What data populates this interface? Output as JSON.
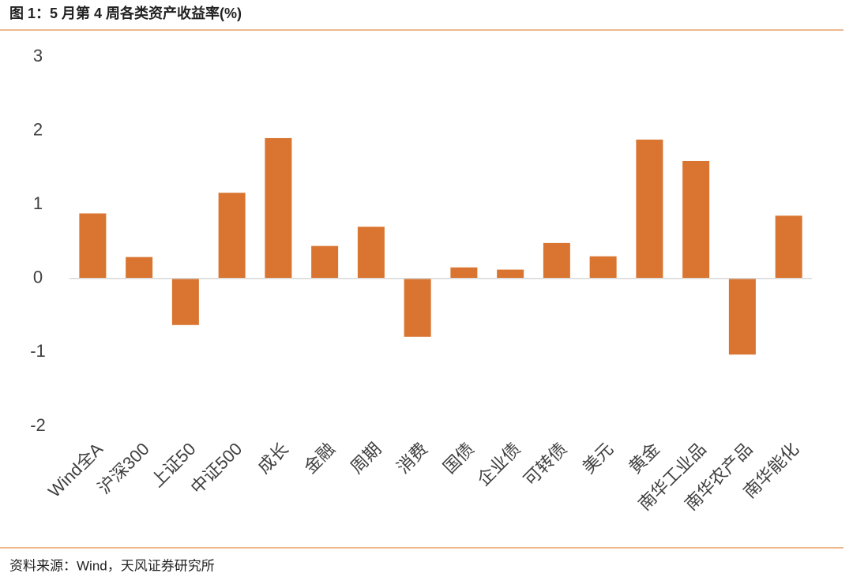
{
  "chart_data": {
    "type": "bar",
    "title": "图 1：5 月第 4 周各类资产收益率(%)",
    "source": "资料来源：Wind，天风证券研究所",
    "categories": [
      "Wind全A",
      "沪深300",
      "上证50",
      "中证500",
      "成长",
      "金融",
      "周期",
      "消费",
      "国债",
      "企业债",
      "可转债",
      "美元",
      "黄金",
      "南华工业品",
      "南华农产品",
      "南华能化"
    ],
    "values": [
      0.88,
      0.29,
      -0.63,
      1.16,
      1.9,
      0.44,
      0.7,
      -0.79,
      0.15,
      0.12,
      0.48,
      0.3,
      1.88,
      1.59,
      -1.03,
      0.85
    ],
    "color": "#d97530",
    "ylim": [
      -2,
      3
    ],
    "yticks": [
      -2,
      -1,
      0,
      1,
      2,
      3
    ],
    "grid": false
  }
}
